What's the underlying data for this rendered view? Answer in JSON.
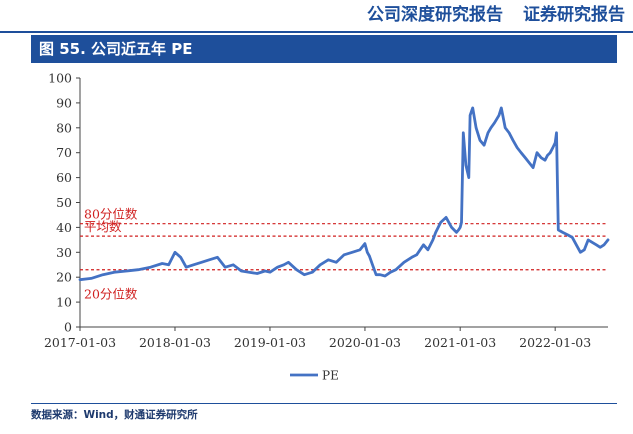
{
  "header": {
    "left": "公司深度研究报告",
    "right": "证券研究报告"
  },
  "figure_title": "图 55. 公司近五年 PE",
  "source": "数据来源：Wind，财通证券研究所",
  "colors": {
    "brand": "#1e4f9b",
    "line": "#4472c4",
    "threshold": "#d01f1f"
  },
  "chart_data": {
    "type": "line",
    "title": "",
    "xlabel": "",
    "ylabel": "",
    "ylim": [
      0,
      100
    ],
    "yticks": [
      "0",
      "10",
      "20",
      "30",
      "40",
      "50",
      "60",
      "70",
      "80",
      "90",
      "100"
    ],
    "xlim": [
      "2017-01-03",
      "2022-07-25"
    ],
    "xticks": [
      "2017-01-03",
      "2018-01-03",
      "2019-01-03",
      "2020-01-03",
      "2021-01-03",
      "2022-01-03"
    ],
    "legend": {
      "position": "bottom",
      "entries": [
        "PE"
      ]
    },
    "grid": false,
    "series": [
      {
        "name": "PE",
        "x": [
          "2017-01-03",
          "2017-02-15",
          "2017-04-01",
          "2017-05-15",
          "2017-07-01",
          "2017-08-15",
          "2017-10-01",
          "2017-11-15",
          "2017-12-10",
          "2018-01-03",
          "2018-01-25",
          "2018-02-15",
          "2018-03-15",
          "2018-04-15",
          "2018-05-15",
          "2018-06-15",
          "2018-07-15",
          "2018-08-15",
          "2018-09-15",
          "2018-10-15",
          "2018-11-15",
          "2018-12-15",
          "2019-01-03",
          "2019-02-01",
          "2019-02-25",
          "2019-03-15",
          "2019-04-15",
          "2019-05-15",
          "2019-06-15",
          "2019-07-15",
          "2019-08-15",
          "2019-09-15",
          "2019-10-15",
          "2019-11-15",
          "2019-12-15",
          "2020-01-03",
          "2020-01-12",
          "2020-01-20",
          "2020-02-01",
          "2020-02-15",
          "2020-03-01",
          "2020-03-20",
          "2020-04-10",
          "2020-05-01",
          "2020-06-01",
          "2020-07-01",
          "2020-07-20",
          "2020-08-15",
          "2020-09-01",
          "2020-09-20",
          "2020-10-01",
          "2020-10-20",
          "2020-11-10",
          "2020-12-01",
          "2020-12-20",
          "2020-12-28",
          "2021-01-03",
          "2021-01-08",
          "2021-01-15",
          "2021-01-25",
          "2021-02-05",
          "2021-02-10",
          "2021-02-20",
          "2021-03-05",
          "2021-03-20",
          "2021-04-05",
          "2021-04-20",
          "2021-05-01",
          "2021-05-15",
          "2021-06-01",
          "2021-06-10",
          "2021-06-25",
          "2021-07-10",
          "2021-07-25",
          "2021-08-10",
          "2021-08-25",
          "2021-09-10",
          "2021-09-25",
          "2021-10-10",
          "2021-10-25",
          "2021-11-10",
          "2021-11-25",
          "2021-12-05",
          "2021-12-15",
          "2021-12-25",
          "2022-01-03",
          "2022-01-08",
          "2022-01-15",
          "2022-02-01",
          "2022-02-20",
          "2022-03-10",
          "2022-03-25",
          "2022-04-10",
          "2022-04-25",
          "2022-05-10",
          "2022-05-25",
          "2022-06-10",
          "2022-06-25",
          "2022-07-10",
          "2022-07-25"
        ],
        "values": [
          19,
          19.5,
          21,
          22,
          22.5,
          23,
          24,
          25.5,
          25,
          30,
          28,
          24,
          25,
          26,
          27,
          28,
          24,
          25,
          22.5,
          22,
          21.5,
          22.5,
          22,
          24,
          25,
          26,
          23,
          21,
          22,
          25,
          27,
          26,
          29,
          30,
          31,
          33.5,
          30,
          28.5,
          25,
          21,
          21,
          20.5,
          22,
          23,
          26,
          28,
          29,
          33,
          31,
          35,
          38,
          42,
          44,
          40,
          38,
          39,
          40,
          42,
          78,
          65,
          60,
          85,
          88,
          80,
          75,
          73,
          78,
          80,
          82,
          85,
          88,
          80,
          78,
          75,
          72,
          70,
          68,
          66,
          64,
          70,
          68,
          67,
          69,
          70,
          72,
          74,
          78,
          39,
          38,
          37,
          36,
          33,
          30,
          31,
          35,
          34,
          33,
          32,
          33,
          35
        ]
      }
    ],
    "annotations": [
      {
        "label": "80分位数",
        "y": 41.5
      },
      {
        "label": "平均数",
        "y": 36.5
      },
      {
        "label": "20分位数",
        "y": 23
      }
    ]
  }
}
